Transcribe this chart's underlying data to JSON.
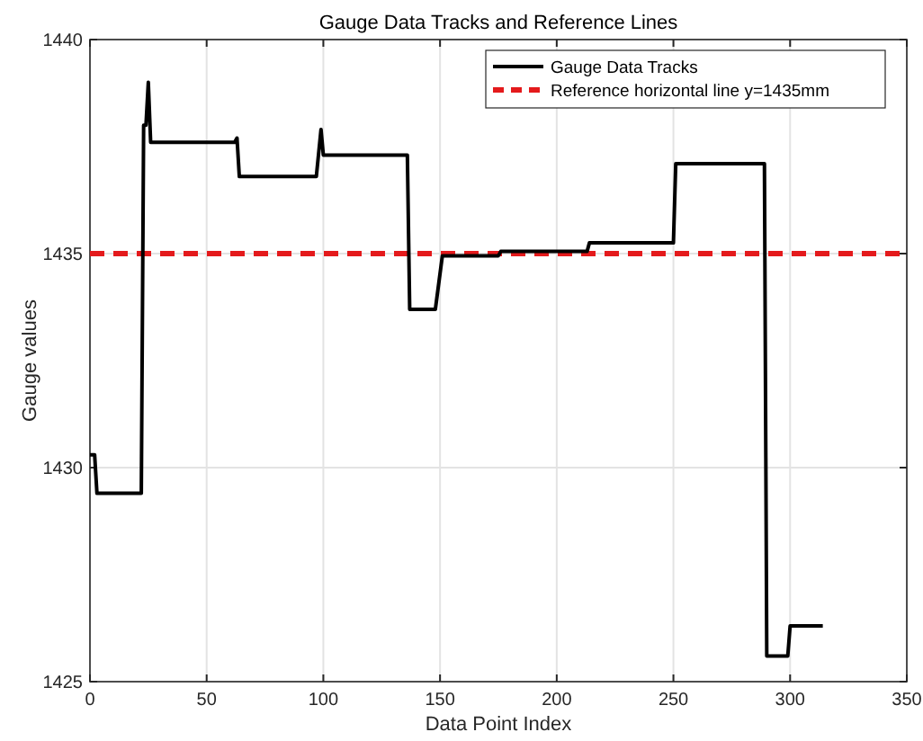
{
  "chart_data": {
    "type": "line",
    "title": "Gauge Data Tracks and Reference Lines",
    "xlabel": "Data Point Index",
    "ylabel": "Gauge values",
    "series": [
      {
        "name": "Gauge Data Tracks",
        "color": "#000000",
        "x": [
          0,
          2,
          3,
          22,
          23,
          24,
          25,
          26,
          62,
          63,
          64,
          97,
          99,
          100,
          136,
          137,
          148,
          151,
          175,
          176,
          213,
          214,
          250,
          251,
          289,
          290,
          299,
          300,
          314
        ],
        "values": [
          1430.3,
          1430.3,
          1429.4,
          1429.4,
          1438,
          1438,
          1439,
          1437.6,
          1437.6,
          1437.7,
          1436.8,
          1436.8,
          1437.9,
          1437.3,
          1437.3,
          1433.7,
          1433.7,
          1434.95,
          1434.95,
          1435.05,
          1435.05,
          1435.25,
          1435.25,
          1437.1,
          1437.1,
          1425.6,
          1425.6,
          1426.3,
          1426.3
        ]
      }
    ],
    "ref_lines": [
      {
        "axis": "y",
        "value": 1435,
        "label": "Reference horizontal line y=1435mm",
        "color": "#e41a1c",
        "line_style": "dashed"
      }
    ],
    "xlim": [
      0,
      350
    ],
    "xticks": [
      0,
      50,
      100,
      150,
      200,
      250,
      300,
      350
    ],
    "ylim": [
      1425,
      1440
    ],
    "yticks": [
      1425,
      1430,
      1435,
      1440
    ],
    "grid": true,
    "legend": "top right",
    "line_style": "solid",
    "marker": "none"
  }
}
